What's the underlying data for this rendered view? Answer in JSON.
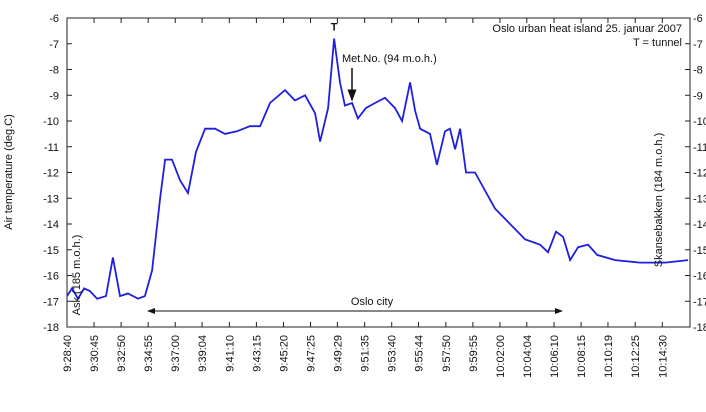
{
  "chart_data": {
    "type": "line",
    "title": "Oslo urban heat island 25. januar 2007",
    "subtitle": "T = tunnel",
    "y_label": "Air temperature (deg.C)",
    "annotations": [
      "T",
      "Met.No. (94 m.o.h.)",
      "Ask (185 m.o.h.)",
      "Skansebakken (184 m.o.h.)",
      "Oslo city"
    ],
    "x": [
      "9:28:40",
      "9:29:03",
      "9:29:31",
      "9:29:59",
      "9:30:26",
      "9:30:59",
      "9:31:40",
      "9:32:12",
      "9:32:45",
      "9:33:22",
      "9:34:08",
      "9:34:40",
      "9:35:13",
      "9:35:50",
      "9:36:13",
      "9:36:45",
      "9:37:22",
      "9:37:59",
      "9:38:36",
      "9:39:18",
      "9:40:04",
      "9:40:50",
      "9:41:45",
      "9:42:45",
      "9:43:32",
      "9:44:18",
      "9:45:27",
      "9:46:13",
      "9:47:00",
      "9:47:46",
      "9:48:09",
      "9:48:46",
      "9:49:14",
      "9:49:41",
      "9:50:04",
      "9:50:37",
      "9:51:04",
      "9:51:41",
      "9:52:23",
      "9:53:09",
      "9:53:55",
      "9:54:28",
      "9:55:05",
      "9:55:28",
      "9:55:51",
      "9:56:37",
      "9:57:09",
      "9:57:46",
      "9:58:09",
      "9:58:33",
      "9:58:56",
      "9:59:23",
      "10:00:05",
      "10:00:51",
      "10:01:37",
      "10:02:24",
      "10:03:10",
      "10:03:56",
      "10:05:05",
      "10:05:42",
      "10:06:19",
      "10:06:52",
      "10:07:24",
      "10:08:01",
      "10:08:47",
      "10:09:29",
      "10:10:52",
      "10:12:47",
      "10:14:43",
      "10:16:29"
    ],
    "series": [
      {
        "name": "Air temperature",
        "color": "#1f1fe0",
        "values": [
          -16.8,
          -16.5,
          -16.9,
          -16.5,
          -16.6,
          -16.9,
          -16.8,
          -15.3,
          -16.8,
          -16.7,
          -16.9,
          -16.8,
          -15.8,
          -13,
          -11.5,
          -11.5,
          -12.3,
          -12.8,
          -11.2,
          -10.3,
          -10.3,
          -10.5,
          -10.4,
          -10.2,
          -10.2,
          -9.3,
          -8.8,
          -9.2,
          -9.0,
          -9.7,
          -10.8,
          -9.5,
          -6.8,
          -8.5,
          -9.4,
          -9.3,
          -9.9,
          -9.5,
          -9.3,
          -9.1,
          -9.5,
          -10.0,
          -8.5,
          -9.6,
          -10.3,
          -10.5,
          -11.7,
          -10.4,
          -10.3,
          -11.1,
          -10.3,
          -12,
          -12,
          -12.7,
          -13.4,
          -13.8,
          -14.2,
          -14.6,
          -14.8,
          -15.1,
          -14.3,
          -14.5,
          -15.4,
          -14.9,
          -14.8,
          -15.2,
          -15.4,
          -15.5,
          -15.5,
          -15.4
        ]
      }
    ],
    "xlim": [
      "9:28:40",
      "10:16:38"
    ],
    "xticks": [
      "9:28:40",
      "9:30:45",
      "9:32:50",
      "9:34:55",
      "9:37:00",
      "9:39:04",
      "9:41:10",
      "9:43:15",
      "9:45:20",
      "9:47:25",
      "9:49:29",
      "9:51:35",
      "9:53:40",
      "9:55:44",
      "9:57:50",
      "9:59:55",
      "10:02:00",
      "10:04:04",
      "10:06:10",
      "10:08:15",
      "10:10:19",
      "10:12:25",
      "10:14:30"
    ],
    "ylim": [
      -18,
      -6
    ],
    "yticks": [
      -6,
      -7,
      -8,
      -9,
      -10,
      -11,
      -12,
      -13,
      -14,
      -15,
      -16,
      -17,
      -18
    ],
    "grid": false
  }
}
